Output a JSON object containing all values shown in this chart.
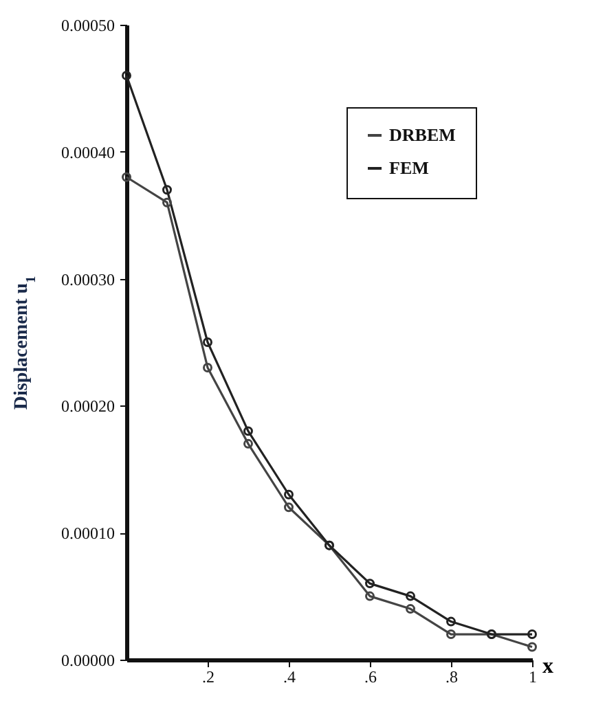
{
  "chart_data": {
    "type": "line",
    "xlabel": "x",
    "ylabel": "Displacement u$_{1}$",
    "x": [
      0,
      0.1,
      0.2,
      0.3,
      0.4,
      0.5,
      0.6,
      0.7,
      0.8,
      0.9,
      1
    ],
    "series": [
      {
        "name": "DRBEM",
        "color": "#444444",
        "values": [
          0.00038,
          0.00036,
          0.00023,
          0.00017,
          0.00012,
          9e-05,
          5e-05,
          4e-05,
          2e-05,
          2e-05,
          1e-05
        ]
      },
      {
        "name": "FEM",
        "color": "#222222",
        "values": [
          0.00046,
          0.00037,
          0.00025,
          0.00018,
          0.00013,
          9e-05,
          6e-05,
          5e-05,
          3e-05,
          2e-05,
          2e-05
        ]
      }
    ],
    "xlim": [
      0,
      1
    ],
    "ylim": [
      0,
      0.0005
    ],
    "xticks": [
      {
        "value": 0.2,
        "label": ".2"
      },
      {
        "value": 0.4,
        "label": ".4"
      },
      {
        "value": 0.6,
        "label": ".6"
      },
      {
        "value": 0.8,
        "label": ".8"
      },
      1
    ],
    "yticks": [
      {
        "value": 0,
        "label": "0.00000"
      },
      {
        "value": 0.0001,
        "label": "0.00010"
      },
      {
        "value": 0.0002,
        "label": "0.00020"
      },
      {
        "value": 0.0003,
        "label": "0.00030"
      },
      {
        "value": 0.0004,
        "label": "0.00040"
      },
      {
        "value": 0.0005,
        "label": "0.00050"
      }
    ],
    "marker": "circle",
    "line_style": "solid",
    "legend": "top right",
    "grid": false
  }
}
